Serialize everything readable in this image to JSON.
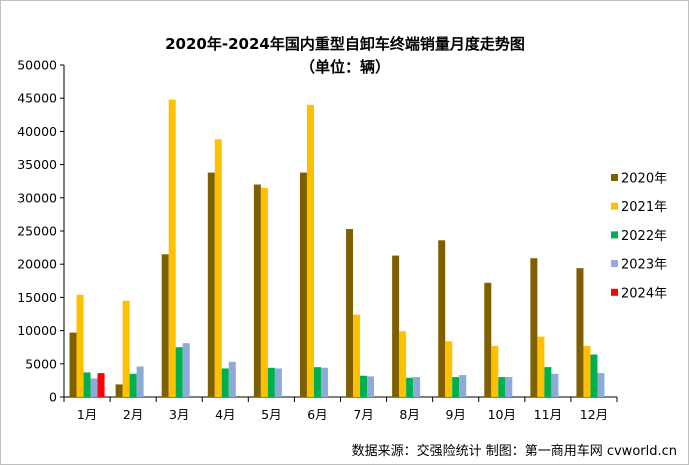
{
  "chart_data": {
    "type": "bar",
    "title": "2020年-2024年国内重型自卸车终端销量月度走势图",
    "subtitle": "（单位：辆）",
    "xlabel": "",
    "ylabel": "",
    "ylim": [
      0,
      50000
    ],
    "yticks": [
      0,
      5000,
      10000,
      15000,
      20000,
      25000,
      30000,
      35000,
      40000,
      45000,
      50000
    ],
    "grid": false,
    "legend_position": "right",
    "categories": [
      "1月",
      "2月",
      "3月",
      "4月",
      "5月",
      "6月",
      "7月",
      "8月",
      "9月",
      "10月",
      "11月",
      "12月"
    ],
    "series": [
      {
        "name": "2020年",
        "color": "#7f6000",
        "values": [
          9700,
          1900,
          21500,
          33800,
          32000,
          33800,
          25300,
          21300,
          23600,
          17200,
          20900,
          19400
        ]
      },
      {
        "name": "2021年",
        "color": "#ffc000",
        "values": [
          15400,
          14500,
          44800,
          38800,
          31500,
          44000,
          12400,
          9900,
          8400,
          7700,
          9100,
          7700
        ]
      },
      {
        "name": "2022年",
        "color": "#00b050",
        "values": [
          3700,
          3500,
          7500,
          4300,
          4400,
          4500,
          3200,
          2900,
          3000,
          3000,
          4500,
          6400
        ]
      },
      {
        "name": "2023年",
        "color": "#8eaadb",
        "values": [
          2800,
          4600,
          8100,
          5300,
          4300,
          4400,
          3100,
          3000,
          3300,
          3000,
          3500,
          3600
        ]
      },
      {
        "name": "2024年",
        "color": "#ff0000",
        "values": [
          3600,
          null,
          null,
          null,
          null,
          null,
          null,
          null,
          null,
          null,
          null,
          null
        ]
      }
    ]
  },
  "footer": {
    "source": "数据来源：交强险统计   制图：第一商用车网 cvworld.cn"
  }
}
